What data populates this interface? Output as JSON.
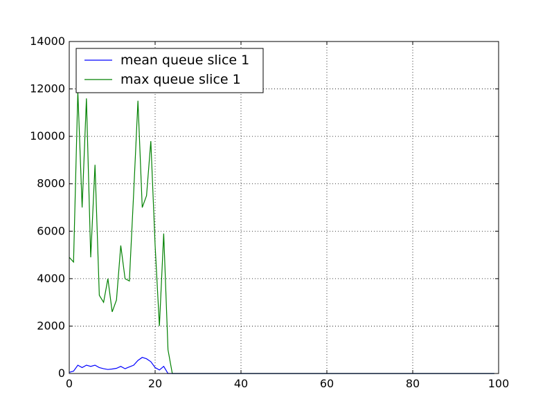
{
  "chart_data": {
    "type": "line",
    "title": "",
    "xlabel": "",
    "ylabel": "",
    "xlim": [
      0,
      100
    ],
    "ylim": [
      0,
      14000
    ],
    "x_ticks": [
      0,
      20,
      40,
      60,
      80,
      100
    ],
    "y_ticks": [
      0,
      2000,
      4000,
      6000,
      8000,
      10000,
      12000,
      14000
    ],
    "x_tick_labels": [
      "0",
      "20",
      "40",
      "60",
      "80",
      "100"
    ],
    "y_tick_labels": [
      "0",
      "2000",
      "4000",
      "6000",
      "8000",
      "10000",
      "12000",
      "14000"
    ],
    "grid": true,
    "legend_position": "top-left",
    "series": [
      {
        "name": "mean queue slice 1",
        "color": "#0000ff",
        "x": [
          0,
          1,
          2,
          3,
          4,
          5,
          6,
          7,
          8,
          9,
          10,
          11,
          12,
          13,
          14,
          15,
          16,
          17,
          18,
          19,
          20,
          21,
          22,
          23,
          24,
          25,
          30,
          40,
          50,
          60,
          70,
          80,
          90,
          99
        ],
        "values": [
          50,
          100,
          350,
          250,
          350,
          300,
          350,
          250,
          200,
          170,
          190,
          220,
          300,
          200,
          280,
          350,
          550,
          680,
          620,
          500,
          250,
          150,
          300,
          0,
          0,
          0,
          0,
          0,
          0,
          0,
          0,
          0,
          0,
          0
        ]
      },
      {
        "name": "max queue slice 1",
        "color": "#008000",
        "x": [
          0,
          1,
          2,
          3,
          4,
          5,
          6,
          7,
          8,
          9,
          10,
          11,
          12,
          13,
          14,
          15,
          16,
          17,
          18,
          19,
          20,
          21,
          22,
          23,
          24,
          25,
          30,
          40,
          50,
          60,
          70,
          80,
          90,
          99
        ],
        "values": [
          4900,
          4700,
          11900,
          7000,
          11600,
          4900,
          8800,
          3300,
          3000,
          4000,
          2600,
          3100,
          5400,
          4000,
          3900,
          7600,
          11500,
          7000,
          7500,
          9800,
          5400,
          2000,
          5900,
          1000,
          0,
          0,
          0,
          0,
          0,
          0,
          0,
          0,
          0,
          0
        ]
      }
    ]
  }
}
